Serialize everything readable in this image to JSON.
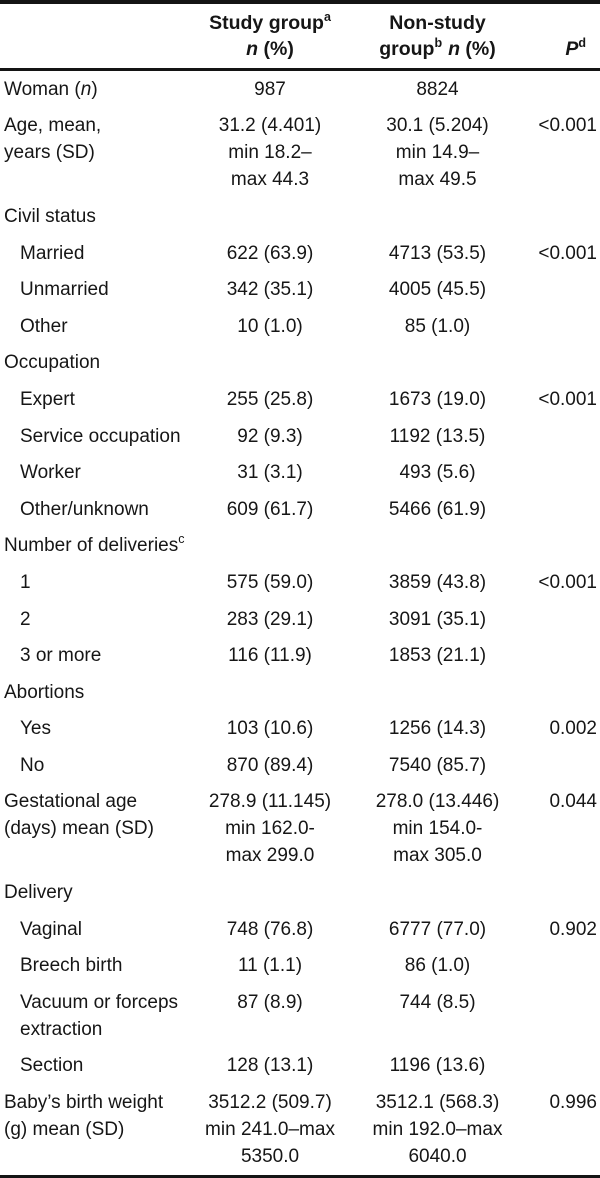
{
  "header": {
    "study": {
      "line1": "Study group",
      "sup": "a",
      "n": "n",
      "pct": " (%)"
    },
    "nonstudy": {
      "line1": "Non-study",
      "group": "group",
      "sup": "b",
      "n": "n",
      "pct": " (%)"
    },
    "p": {
      "label": "P",
      "sup": "d"
    }
  },
  "colors": {
    "text": "#161616",
    "border": "#141414",
    "background": "#ffffff"
  },
  "table": {
    "rows": [
      {
        "kind": "data",
        "label": [
          {
            "t": "Woman ("
          },
          {
            "i": "n"
          },
          {
            "t": ")"
          }
        ],
        "study": [
          "987"
        ],
        "nonstudy": [
          "8824"
        ],
        "p": ""
      },
      {
        "kind": "data",
        "label": [
          {
            "t": "Age, mean,"
          },
          {
            "br": true
          },
          {
            "t": "years (SD)"
          }
        ],
        "study": [
          "31.2 (4.401)",
          "min 18.2–",
          "max 44.3"
        ],
        "nonstudy": [
          "30.1 (5.204)",
          "min 14.9–",
          "max 49.5"
        ],
        "p": "<0.001"
      },
      {
        "kind": "section",
        "label": [
          {
            "t": "Civil status"
          }
        ]
      },
      {
        "kind": "data",
        "indent": true,
        "label": [
          {
            "t": "Married"
          }
        ],
        "study": [
          "622 (63.9)"
        ],
        "nonstudy": [
          "4713 (53.5)"
        ],
        "p": "<0.001"
      },
      {
        "kind": "data",
        "indent": true,
        "label": [
          {
            "t": "Unmarried"
          }
        ],
        "study": [
          "342 (35.1)"
        ],
        "nonstudy": [
          "4005 (45.5)"
        ],
        "p": ""
      },
      {
        "kind": "data",
        "indent": true,
        "label": [
          {
            "t": "Other"
          }
        ],
        "study": [
          "10 (1.0)"
        ],
        "nonstudy": [
          "85 (1.0)"
        ],
        "p": ""
      },
      {
        "kind": "section",
        "label": [
          {
            "t": "Occupation"
          }
        ]
      },
      {
        "kind": "data",
        "indent": true,
        "label": [
          {
            "t": "Expert"
          }
        ],
        "study": [
          "255 (25.8)"
        ],
        "nonstudy": [
          "1673 (19.0)"
        ],
        "p": "<0.001"
      },
      {
        "kind": "data",
        "indent": true,
        "label": [
          {
            "t": "Service occupation"
          }
        ],
        "study": [
          "92 (9.3)"
        ],
        "nonstudy": [
          "1192 (13.5)"
        ],
        "p": ""
      },
      {
        "kind": "data",
        "indent": true,
        "label": [
          {
            "t": "Worker"
          }
        ],
        "study": [
          "31 (3.1)"
        ],
        "nonstudy": [
          "493 (5.6)"
        ],
        "p": ""
      },
      {
        "kind": "data",
        "indent": true,
        "label": [
          {
            "t": "Other/unknown"
          }
        ],
        "study": [
          "609 (61.7)"
        ],
        "nonstudy": [
          "5466 (61.9)"
        ],
        "p": ""
      },
      {
        "kind": "section",
        "label": [
          {
            "t": "Number of deliveries"
          },
          {
            "s": "c"
          }
        ]
      },
      {
        "kind": "data",
        "indent": true,
        "label": [
          {
            "t": "1"
          }
        ],
        "study": [
          "575 (59.0)"
        ],
        "nonstudy": [
          "3859 (43.8)"
        ],
        "p": "<0.001"
      },
      {
        "kind": "data",
        "indent": true,
        "label": [
          {
            "t": "2"
          }
        ],
        "study": [
          "283 (29.1)"
        ],
        "nonstudy": [
          "3091 (35.1)"
        ],
        "p": ""
      },
      {
        "kind": "data",
        "indent": true,
        "label": [
          {
            "t": "3 or more"
          }
        ],
        "study": [
          "116 (11.9)"
        ],
        "nonstudy": [
          "1853 (21.1)"
        ],
        "p": ""
      },
      {
        "kind": "section",
        "label": [
          {
            "t": "Abortions"
          }
        ]
      },
      {
        "kind": "data",
        "indent": true,
        "label": [
          {
            "t": "Yes"
          }
        ],
        "study": [
          "103 (10.6)"
        ],
        "nonstudy": [
          "1256 (14.3)"
        ],
        "p": "0.002"
      },
      {
        "kind": "data",
        "indent": true,
        "label": [
          {
            "t": "No"
          }
        ],
        "study": [
          "870 (89.4)"
        ],
        "nonstudy": [
          "7540 (85.7)"
        ],
        "p": ""
      },
      {
        "kind": "data",
        "label": [
          {
            "t": "Gestational age"
          },
          {
            "br": true
          },
          {
            "t": "(days) mean (SD)"
          }
        ],
        "study": [
          "278.9 (11.145)",
          "min 162.0-",
          "max 299.0"
        ],
        "nonstudy": [
          "278.0 (13.446)",
          "min 154.0-",
          "max 305.0"
        ],
        "p": "0.044"
      },
      {
        "kind": "section",
        "label": [
          {
            "t": "Delivery"
          }
        ]
      },
      {
        "kind": "data",
        "indent": true,
        "label": [
          {
            "t": "Vaginal"
          }
        ],
        "study": [
          "748 (76.8)"
        ],
        "nonstudy": [
          "6777 (77.0)"
        ],
        "p": "0.902"
      },
      {
        "kind": "data",
        "indent": true,
        "label": [
          {
            "t": "Breech birth"
          }
        ],
        "study": [
          "11 (1.1)"
        ],
        "nonstudy": [
          "86 (1.0)"
        ],
        "p": ""
      },
      {
        "kind": "data",
        "indent": true,
        "label": [
          {
            "t": "Vacuum or forceps"
          },
          {
            "br": true
          },
          {
            "t": "extraction"
          }
        ],
        "study": [
          "87 (8.9)"
        ],
        "nonstudy": [
          "744 (8.5)"
        ],
        "p": ""
      },
      {
        "kind": "data",
        "indent": true,
        "label": [
          {
            "t": "Section"
          }
        ],
        "study": [
          "128 (13.1)"
        ],
        "nonstudy": [
          "1196 (13.6)"
        ],
        "p": ""
      },
      {
        "kind": "data",
        "label": [
          {
            "t": "Baby’s birth weight"
          },
          {
            "br": true
          },
          {
            "t": "(g) mean (SD)"
          }
        ],
        "study": [
          "3512.2 (509.7)",
          "min 241.0–max",
          "5350.0"
        ],
        "nonstudy": [
          "3512.1 (568.3)",
          "min 192.0–max",
          "6040.0"
        ],
        "p": "0.996"
      }
    ]
  }
}
